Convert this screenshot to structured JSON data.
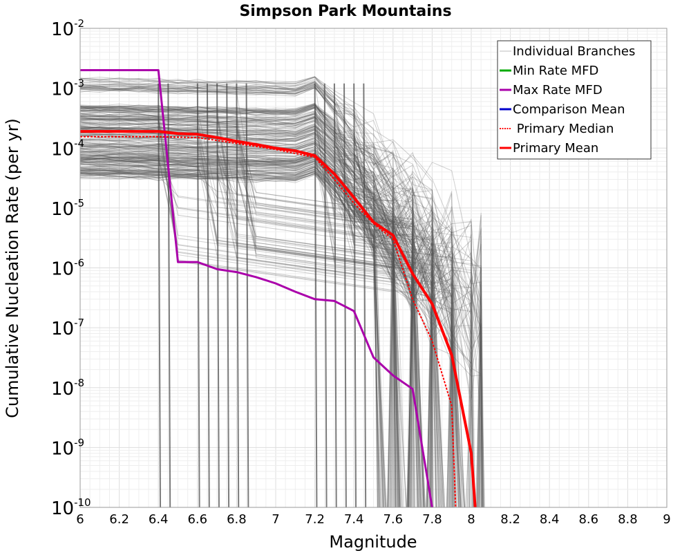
{
  "chart_data": {
    "type": "line",
    "title": "Simpson Park Mountains",
    "xlabel": "Magnitude",
    "ylabel": "Cumulative Nucleation Rate (per yr)",
    "xlim": [
      6,
      9
    ],
    "ylim": [
      1e-10,
      0.01
    ],
    "yscale": "log",
    "grid": true,
    "legend_position": "top-right",
    "x_ticks": [
      "6",
      "6.2",
      "6.4",
      "6.6",
      "6.8",
      "7",
      "7.2",
      "7.4",
      "7.6",
      "7.8",
      "8",
      "8.2",
      "8.4",
      "8.6",
      "8.8",
      "9"
    ],
    "y_ticks": [
      {
        "base": "10",
        "exp": "-10"
      },
      {
        "base": "10",
        "exp": "-9"
      },
      {
        "base": "10",
        "exp": "-8"
      },
      {
        "base": "10",
        "exp": "-7"
      },
      {
        "base": "10",
        "exp": "-6"
      },
      {
        "base": "10",
        "exp": "-5"
      },
      {
        "base": "10",
        "exp": "-4"
      },
      {
        "base": "10",
        "exp": "-3"
      },
      {
        "base": "10",
        "exp": "-2"
      }
    ],
    "legend": [
      {
        "label": "Individual Branches",
        "color": "#bbbbbb",
        "style": "solid"
      },
      {
        "label": "Min Rate MFD",
        "color": "#00aa00",
        "style": "solid"
      },
      {
        "label": "Max Rate MFD",
        "color": "#aa00aa",
        "style": "solid"
      },
      {
        "label": "Comparison Mean",
        "color": "#0000cc",
        "style": "solid"
      },
      {
        "label": " Primary Median",
        "color": "#ff0000",
        "style": "dotted"
      },
      {
        "label": "Primary Mean",
        "color": "#ff0000",
        "style": "solid"
      }
    ],
    "series": [
      {
        "name": "Max Rate MFD",
        "color": "#aa00aa",
        "x": [
          6.0,
          6.1,
          6.2,
          6.3,
          6.4,
          6.5,
          6.6,
          6.7,
          6.8,
          6.9,
          7.0,
          7.1,
          7.2,
          7.3,
          7.4,
          7.5,
          7.6,
          7.7,
          7.8
        ],
        "y": [
          0.002,
          0.002,
          0.002,
          0.002,
          0.002,
          1.25e-06,
          1.25e-06,
          9.5e-07,
          8.5e-07,
          7e-07,
          5.5e-07,
          4e-07,
          3e-07,
          2.8e-07,
          1.9e-07,
          3.2e-08,
          1.6e-08,
          9.5e-09,
          1e-10
        ]
      },
      {
        "name": "Primary Mean",
        "color": "#ff0000",
        "x": [
          6.0,
          6.1,
          6.2,
          6.3,
          6.4,
          6.5,
          6.6,
          6.7,
          6.8,
          6.9,
          7.0,
          7.1,
          7.2,
          7.3,
          7.4,
          7.5,
          7.6,
          7.7,
          7.8,
          7.9,
          8.0,
          8.02
        ],
        "y": [
          0.00019,
          0.00019,
          0.00019,
          0.00019,
          0.00019,
          0.000175,
          0.00017,
          0.00015,
          0.00013,
          0.000115,
          0.0001,
          9e-05,
          7.5e-05,
          3.7e-05,
          1.5e-05,
          5.8e-06,
          3.5e-06,
          8e-07,
          2.5e-07,
          3.5e-08,
          8e-10,
          1e-10
        ]
      },
      {
        "name": " Primary Median",
        "color": "#ff0000",
        "x": [
          6.0,
          6.2,
          6.4,
          6.6,
          6.8,
          7.0,
          7.2,
          7.3,
          7.4,
          7.5,
          7.6,
          7.7,
          7.8,
          7.9,
          7.92
        ],
        "y": [
          0.000155,
          0.000155,
          0.000155,
          0.00015,
          0.00012,
          9.5e-05,
          7e-05,
          3e-05,
          1.2e-05,
          5.5e-06,
          3e-06,
          3e-07,
          6e-08,
          5e-09,
          1e-10
        ]
      }
    ]
  }
}
